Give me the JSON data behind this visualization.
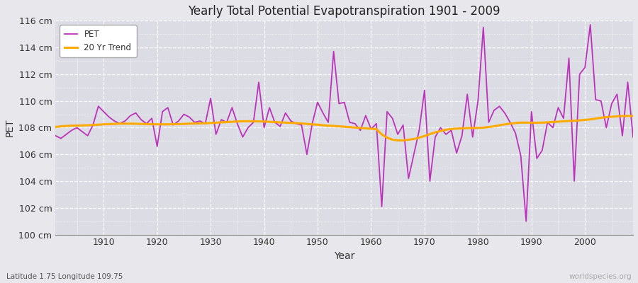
{
  "title": "Yearly Total Potential Evapotranspiration 1901 - 2009",
  "xlabel": "Year",
  "ylabel": "PET",
  "subtitle": "Latitude 1.75 Longitude 109.75",
  "watermark": "worldspecies.org",
  "ylim": [
    100,
    116
  ],
  "xlim": [
    1901,
    2009
  ],
  "pet_color": "#bb33bb",
  "trend_color": "#ffaa00",
  "fig_bg": "#e8e8ec",
  "plot_bg": "#dcdce4",
  "grid_color": "#c8c8d0",
  "years": [
    1901,
    1902,
    1903,
    1904,
    1905,
    1906,
    1907,
    1908,
    1909,
    1910,
    1911,
    1912,
    1913,
    1914,
    1915,
    1916,
    1917,
    1918,
    1919,
    1920,
    1921,
    1922,
    1923,
    1924,
    1925,
    1926,
    1927,
    1928,
    1929,
    1930,
    1931,
    1932,
    1933,
    1934,
    1935,
    1936,
    1937,
    1938,
    1939,
    1940,
    1941,
    1942,
    1943,
    1944,
    1945,
    1946,
    1947,
    1948,
    1949,
    1950,
    1951,
    1952,
    1953,
    1954,
    1955,
    1956,
    1957,
    1958,
    1959,
    1960,
    1961,
    1962,
    1963,
    1964,
    1965,
    1966,
    1967,
    1968,
    1969,
    1970,
    1971,
    1972,
    1973,
    1974,
    1975,
    1976,
    1977,
    1978,
    1979,
    1980,
    1981,
    1982,
    1983,
    1984,
    1985,
    1986,
    1987,
    1988,
    1989,
    1990,
    1991,
    1992,
    1993,
    1994,
    1995,
    1996,
    1997,
    1998,
    1999,
    2000,
    2001,
    2002,
    2003,
    2004,
    2005,
    2006,
    2007,
    2008,
    2009
  ],
  "pet_values": [
    107.4,
    107.2,
    107.5,
    107.8,
    108.0,
    107.7,
    107.4,
    108.2,
    109.6,
    109.2,
    108.8,
    108.5,
    108.3,
    108.5,
    108.9,
    109.1,
    108.6,
    108.3,
    108.7,
    106.6,
    109.2,
    109.5,
    108.2,
    108.5,
    109.0,
    108.8,
    108.4,
    108.5,
    108.3,
    110.2,
    107.5,
    108.6,
    108.4,
    109.5,
    108.3,
    107.3,
    108.0,
    108.4,
    111.4,
    108.0,
    109.5,
    108.4,
    108.1,
    109.1,
    108.5,
    108.3,
    108.2,
    106.0,
    108.3,
    109.9,
    109.1,
    108.4,
    113.7,
    109.8,
    109.9,
    108.4,
    108.3,
    107.8,
    108.9,
    107.9,
    108.3,
    102.1,
    109.2,
    108.7,
    107.5,
    108.2,
    104.2,
    106.0,
    107.8,
    110.8,
    104.0,
    107.3,
    108.0,
    107.5,
    107.8,
    106.1,
    107.4,
    110.5,
    107.3,
    110.0,
    115.5,
    108.4,
    109.3,
    109.6,
    109.1,
    108.4,
    107.6,
    105.9,
    101.0,
    109.2,
    105.7,
    106.3,
    108.4,
    108.0,
    109.5,
    108.7,
    113.2,
    104.0,
    112.0,
    112.5,
    115.7,
    110.1,
    110.0,
    108.0,
    109.8,
    110.5,
    107.4,
    111.4,
    107.3
  ],
  "trend_values": [
    108.05,
    108.1,
    108.13,
    108.15,
    108.16,
    108.17,
    108.18,
    108.2,
    108.22,
    108.25,
    108.27,
    108.28,
    108.3,
    108.3,
    108.3,
    108.29,
    108.28,
    108.27,
    108.26,
    108.25,
    108.25,
    108.25,
    108.26,
    108.27,
    108.28,
    108.3,
    108.31,
    108.32,
    108.33,
    108.35,
    108.37,
    108.4,
    108.42,
    108.44,
    108.46,
    108.48,
    108.48,
    108.48,
    108.47,
    108.46,
    108.44,
    108.42,
    108.4,
    108.38,
    108.36,
    108.34,
    108.32,
    108.28,
    108.25,
    108.22,
    108.18,
    108.15,
    108.13,
    108.1,
    108.07,
    108.04,
    108.01,
    107.98,
    107.95,
    107.92,
    107.89,
    107.5,
    107.25,
    107.1,
    107.05,
    107.05,
    107.1,
    107.15,
    107.25,
    107.38,
    107.52,
    107.65,
    107.75,
    107.85,
    107.9,
    107.93,
    107.95,
    107.97,
    107.98,
    107.98,
    108.0,
    108.05,
    108.1,
    108.18,
    108.25,
    108.3,
    108.35,
    108.38,
    108.38,
    108.37,
    108.37,
    108.38,
    108.4,
    108.43,
    108.45,
    108.48,
    108.5,
    108.52,
    108.55,
    108.58,
    108.62,
    108.68,
    108.74,
    108.79,
    108.82,
    108.85,
    108.87,
    108.88,
    108.88
  ]
}
